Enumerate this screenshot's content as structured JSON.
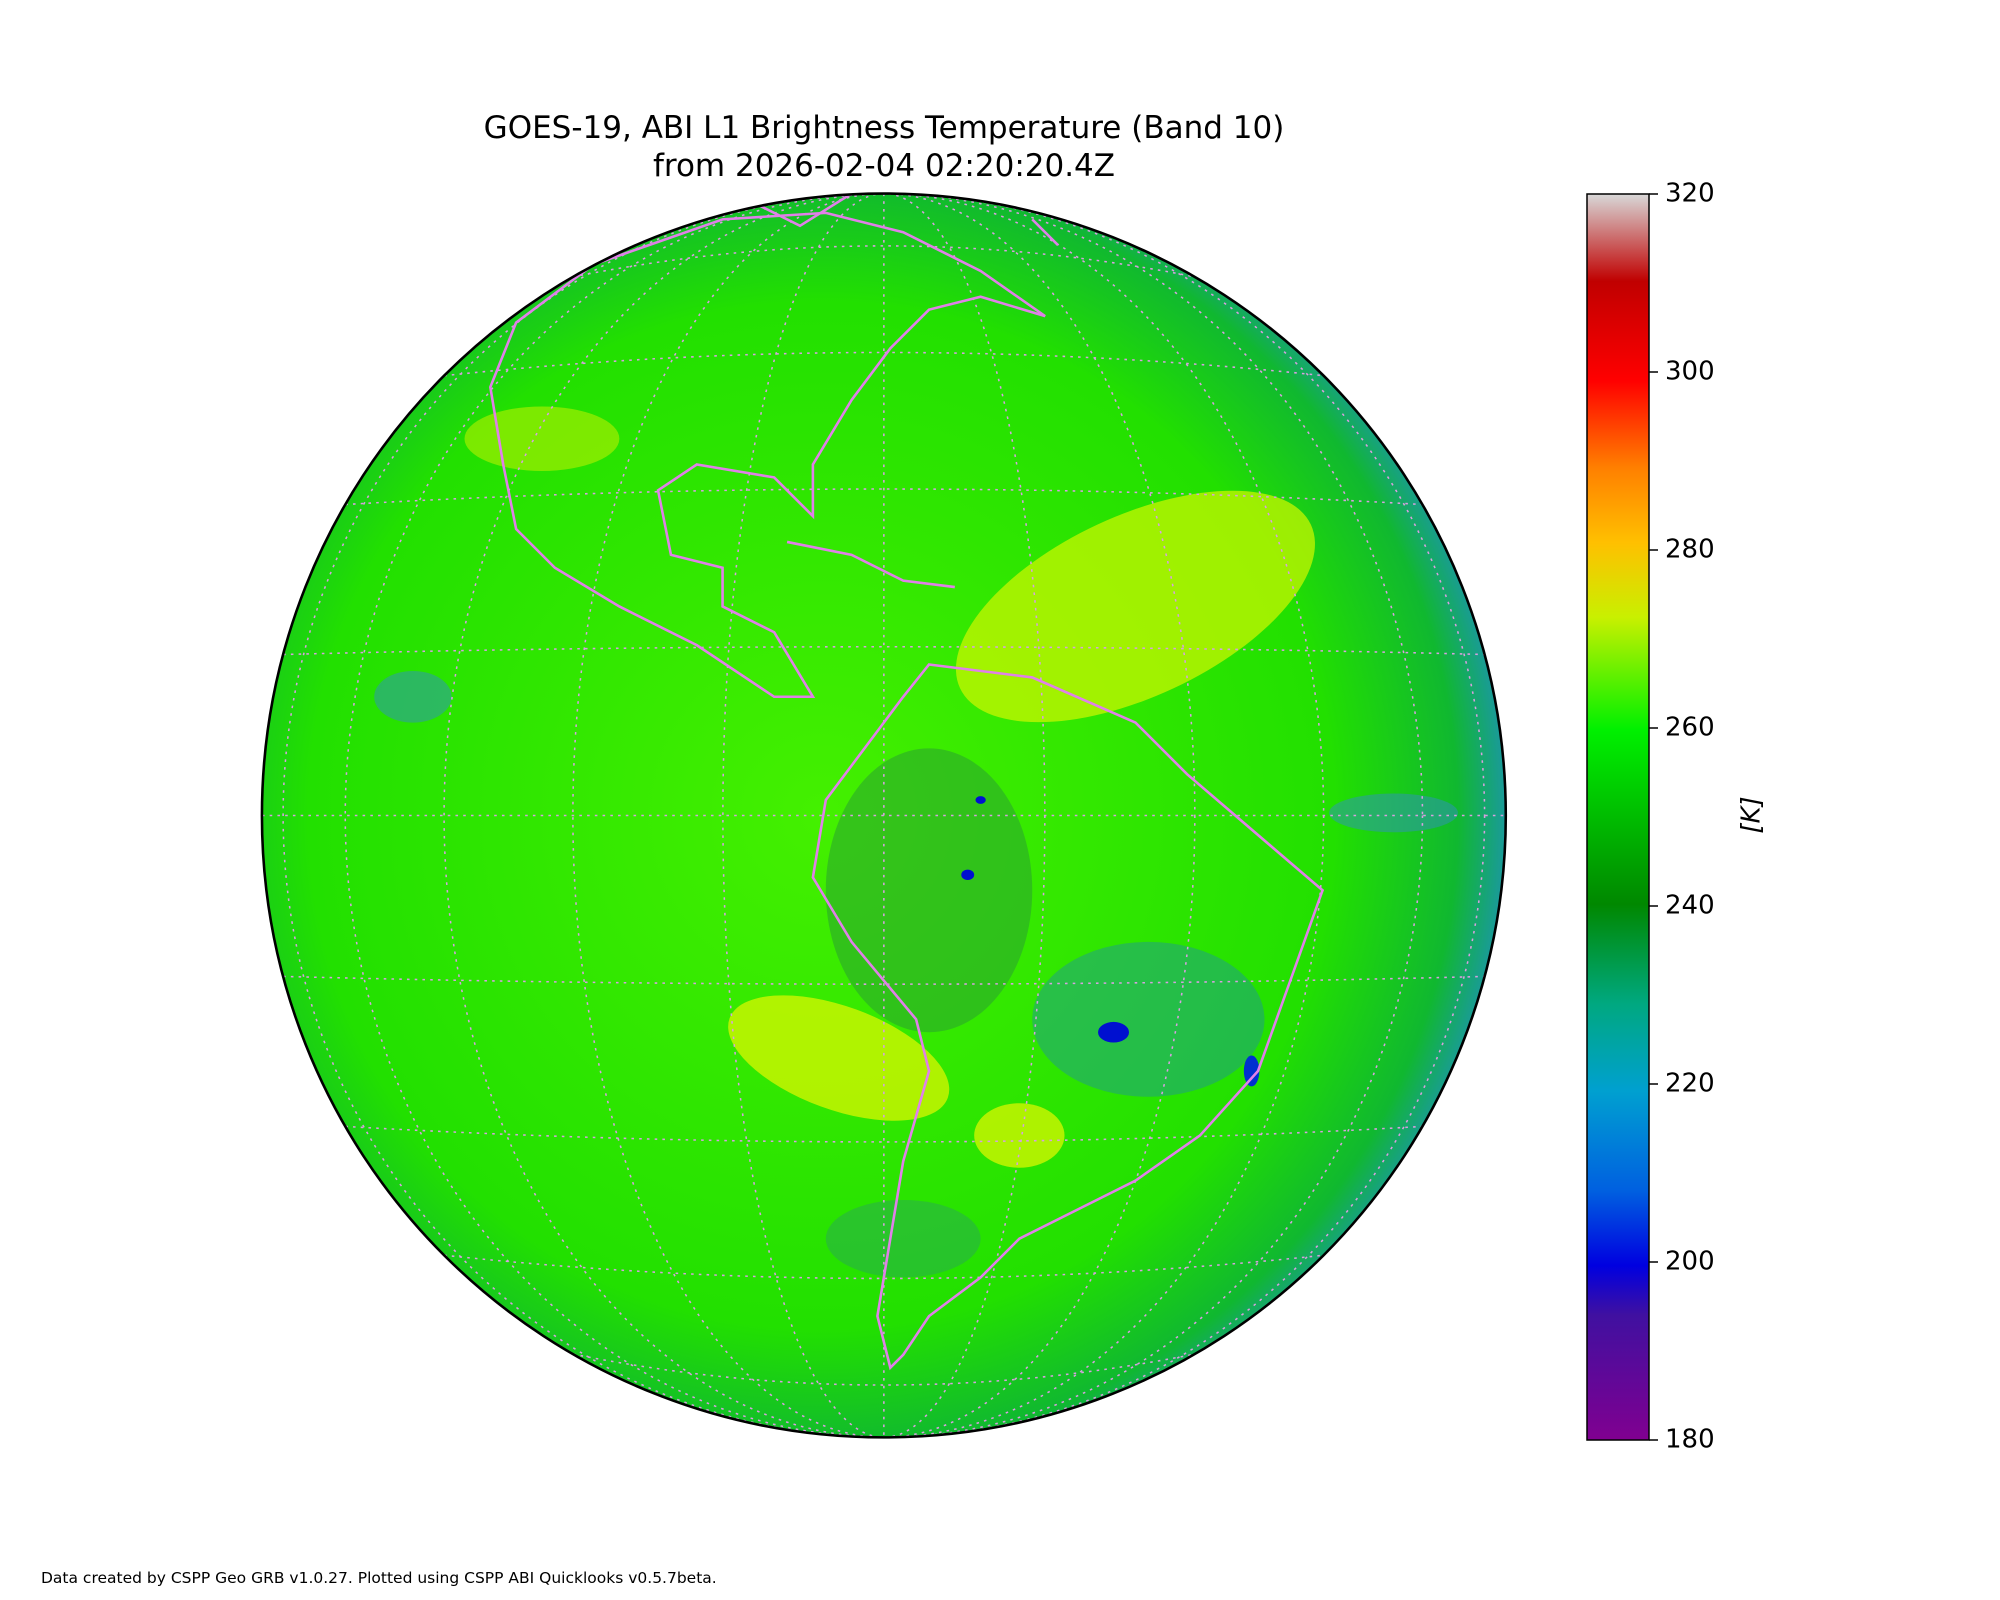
{
  "title": "GOES-19, ABI L1 Brightness Temperature (Band 10)",
  "subtitle": "from 2026-02-04 02:20:20.4Z",
  "colorbar": {
    "label": "[K]",
    "range": [
      180,
      320
    ],
    "ticks": [
      180,
      200,
      220,
      240,
      260,
      280,
      300,
      320
    ]
  },
  "footer": "Data created by CSPP Geo GRB v1.0.27. Plotted using CSPP ABI Quicklooks v0.5.7beta."
}
